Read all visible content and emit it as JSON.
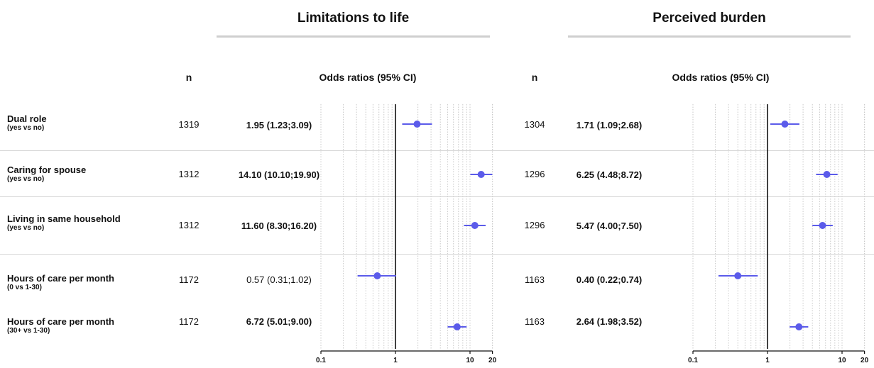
{
  "panels": [
    {
      "title": "Limitations to life",
      "n_header": "n",
      "or_header": "Odds ratios (95% CI)",
      "rows": [
        {
          "n": "1319",
          "or_text": "1.95 (1.23;3.09)",
          "bold": true
        },
        {
          "n": "1312",
          "or_text": "14.10 (10.10;19.90)",
          "bold": true
        },
        {
          "n": "1312",
          "or_text": "11.60 (8.30;16.20)",
          "bold": true
        },
        {
          "n": "1172",
          "or_text": "0.57 (0.31;1.02)",
          "bold": false
        },
        {
          "n": "1172",
          "or_text": "6.72 (5.01;9.00)",
          "bold": true
        }
      ]
    },
    {
      "title": "Perceived burden",
      "n_header": "n",
      "or_header": "Odds ratios (95% CI)",
      "rows": [
        {
          "n": "1304",
          "or_text": "1.71 (1.09;2.68)",
          "bold": true
        },
        {
          "n": "1296",
          "or_text": "6.25 (4.48;8.72)",
          "bold": true
        },
        {
          "n": "1296",
          "or_text": "5.47 (4.00;7.50)",
          "bold": true
        },
        {
          "n": "1163",
          "or_text": "0.40 (0.22;0.74)",
          "bold": true
        },
        {
          "n": "1163",
          "or_text": "2.64 (1.98;3.52)",
          "bold": true
        }
      ]
    }
  ],
  "row_labels": [
    {
      "label": "Dual role",
      "sub": "(yes vs no)"
    },
    {
      "label": "Caring for spouse",
      "sub": "(yes vs no)"
    },
    {
      "label": "Living in same household",
      "sub": "(yes vs no)"
    },
    {
      "label": "Hours of care per month",
      "sub": "(0 vs 1-30)"
    },
    {
      "label": "Hours of care per month",
      "sub": "(30+ vs 1-30)"
    }
  ],
  "chart_data": [
    {
      "type": "scatter",
      "title": "Limitations to life",
      "x_scale": "log",
      "xlim": [
        0.1,
        20
      ],
      "x_ticks": [
        0.1,
        1,
        10,
        20
      ],
      "x_tick_labels": [
        "0.1",
        "1",
        "10",
        "20"
      ],
      "reference_line": 1,
      "categories": [
        "Dual role",
        "Caring for spouse",
        "Living in same household",
        "Hours of care per month (0 vs 1-30)",
        "Hours of care per month (30+ vs 1-30)"
      ],
      "values": [
        1.95,
        14.1,
        11.6,
        0.57,
        6.72
      ],
      "ci_low": [
        1.23,
        10.1,
        8.3,
        0.31,
        5.01
      ],
      "ci_high": [
        3.09,
        19.9,
        16.2,
        1.02,
        9.0
      ],
      "point_color": "#5b5bea"
    },
    {
      "type": "scatter",
      "title": "Perceived burden",
      "x_scale": "log",
      "xlim": [
        0.1,
        20
      ],
      "x_ticks": [
        0.1,
        1,
        10,
        20
      ],
      "x_tick_labels": [
        "0.1",
        "1",
        "10",
        "20"
      ],
      "reference_line": 1,
      "categories": [
        "Dual role",
        "Caring for spouse",
        "Living in same household",
        "Hours of care per month (0 vs 1-30)",
        "Hours of care per month (30+ vs 1-30)"
      ],
      "values": [
        1.71,
        6.25,
        5.47,
        0.4,
        2.64
      ],
      "ci_low": [
        1.09,
        4.48,
        4.0,
        0.22,
        1.98
      ],
      "ci_high": [
        2.68,
        8.72,
        7.5,
        0.74,
        3.52
      ],
      "point_color": "#5b5bea"
    }
  ]
}
